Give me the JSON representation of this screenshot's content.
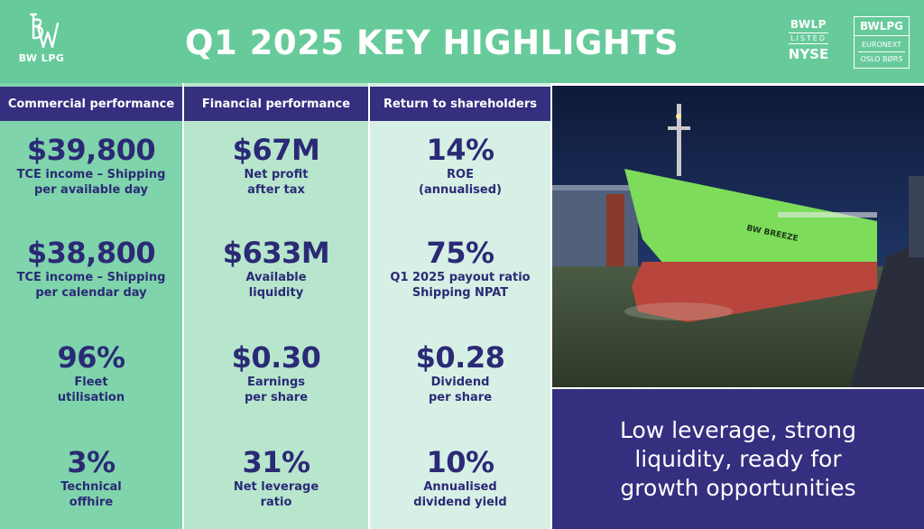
{
  "header": {
    "logo_text": "BW LPG",
    "title": "Q1 2025 KEY HIGHLIGHTS",
    "nyse_badge": {
      "ticker": "BWLP",
      "listed": "LISTED",
      "exchange": "NYSE"
    },
    "oslo_badge": {
      "ticker": "BWLPG",
      "line1": "EURONEXT",
      "line2": "OSLO BØRS"
    }
  },
  "columns": [
    {
      "heading": "Commercial performance",
      "metrics": [
        {
          "value": "$39,800",
          "label_line1": "TCE income – Shipping",
          "label_line2": "per available day"
        },
        {
          "value": "$38,800",
          "label_line1": "TCE income – Shipping",
          "label_line2": "per calendar day"
        },
        {
          "value": "96%",
          "label_line1": "Fleet",
          "label_line2": "utilisation"
        },
        {
          "value": "3%",
          "label_line1": "Technical",
          "label_line2": "offhire"
        }
      ]
    },
    {
      "heading": "Financial performance",
      "metrics": [
        {
          "value": "$67M",
          "label_line1": "Net profit",
          "label_line2": "after tax"
        },
        {
          "value": "$633M",
          "label_line1": "Available",
          "label_line2": "liquidity"
        },
        {
          "value": "$0.30",
          "label_line1": "Earnings",
          "label_line2": "per share"
        },
        {
          "value": "31%",
          "label_line1": "Net leverage",
          "label_line2": "ratio"
        }
      ]
    },
    {
      "heading": "Return to shareholders",
      "metrics": [
        {
          "value": "14%",
          "label_line1": "ROE",
          "label_line2": "(annualised)"
        },
        {
          "value": "75%",
          "label_line1": "Q1 2025 payout ratio",
          "label_line2": "Shipping NPAT"
        },
        {
          "value": "$0.28",
          "label_line1": "Dividend",
          "label_line2": "per share"
        },
        {
          "value": "10%",
          "label_line1": "Annualised",
          "label_line2": "dividend yield"
        }
      ]
    }
  ],
  "photo": {
    "ship_name": "BW BREEZE"
  },
  "callout": {
    "text": "Low leverage, strong liquidity, ready for growth opportunities"
  },
  "colors": {
    "header_green": "#67ca9b",
    "navy": "#352f80",
    "col1": "#7fd4ab",
    "col2": "#b7e6cc",
    "col3": "#d7f0e5",
    "value_text": "#2b2a76"
  }
}
